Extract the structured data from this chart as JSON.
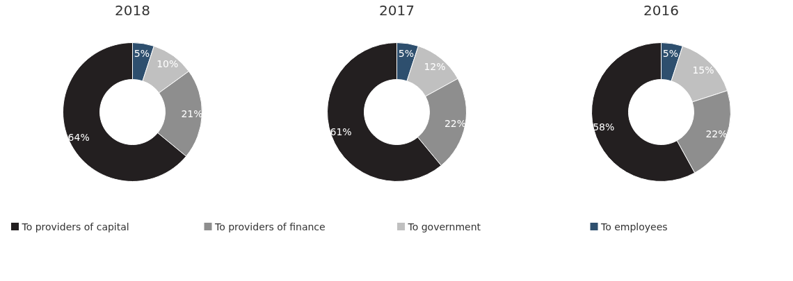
{
  "chart_data": [
    {
      "type": "donut",
      "title": "2018",
      "categories": [
        "To employees",
        "To government",
        "To providers of finance",
        "To providers of capital"
      ],
      "values": [
        5,
        10,
        21,
        64
      ],
      "value_labels": [
        "5%",
        "10%",
        "21%",
        "64%"
      ],
      "colors": [
        "#2e4f6e",
        "#c0c0c0",
        "#8e8e8e",
        "#231f20"
      ],
      "legend": "bottom"
    },
    {
      "type": "donut",
      "title": "2017",
      "values": [
        5,
        12,
        22,
        61
      ],
      "value_labels": [
        "5%",
        "12%",
        "22%",
        "61%"
      ],
      "colors": [
        "#2e4f6e",
        "#c0c0c0",
        "#8e8e8e",
        "#231f20"
      ]
    },
    {
      "type": "donut",
      "title": "2016",
      "values": [
        5,
        15,
        22,
        58
      ],
      "value_labels": [
        "5%",
        "15%",
        "22%",
        "58%"
      ],
      "colors": [
        "#2e4f6e",
        "#c0c0c0",
        "#8e8e8e",
        "#231f20"
      ]
    }
  ]
}
